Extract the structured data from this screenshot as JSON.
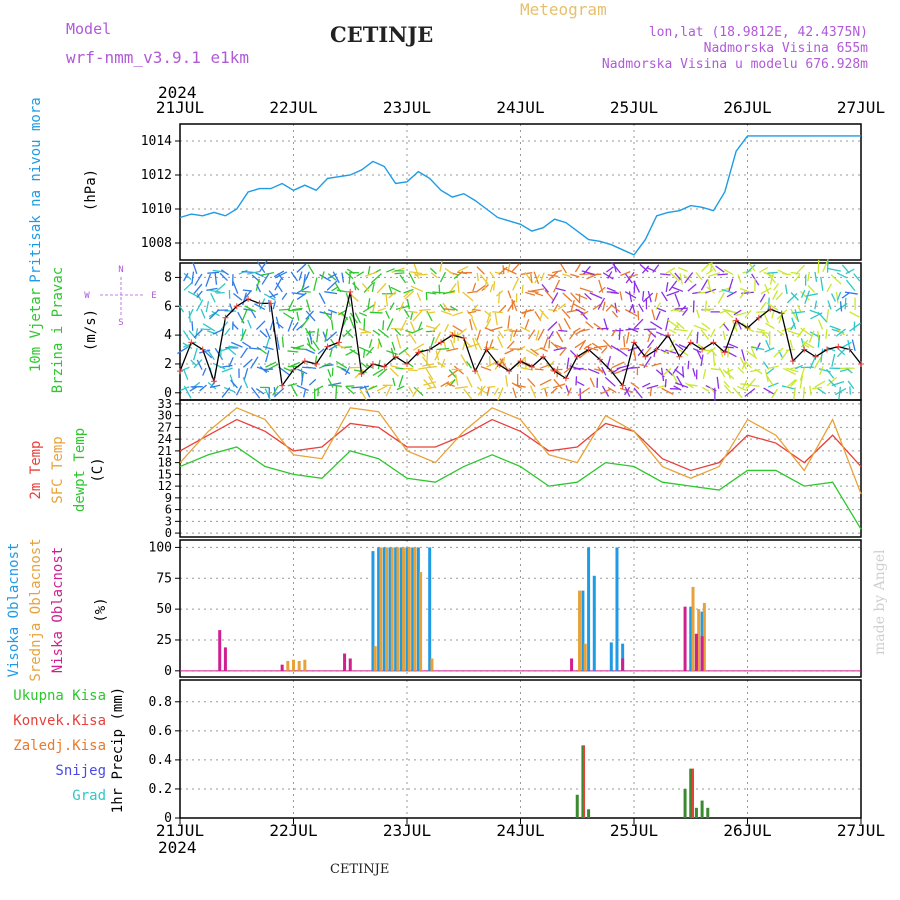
{
  "header": {
    "model_label": "Model",
    "model_name": "wrf-nmm_v3.9.1 e1km",
    "station": "CETINJE",
    "meteogram": "Meteogram",
    "lonlat": "lon,lat (18.9812E, 42.4375N)",
    "elevation": "Nadmorska Visina 655m",
    "model_elevation": "Nadmorska Visina u modelu 676.928m"
  },
  "footer": {
    "station": "CETINJE",
    "credit": "made by Angel"
  },
  "colors": {
    "pressure": "#1f9be6",
    "temp": "#e8403a",
    "sfc": "#e8a23a",
    "dew": "#2ec72e",
    "high": "#1f9be6",
    "mid": "#e8a23a",
    "low": "#d01f8f",
    "precip": "#3a8a2e",
    "konv": "#e8403a"
  },
  "time_axis": {
    "year": "2024",
    "labels": [
      "21JUL",
      "22JUL",
      "23JUL",
      "24JUL",
      "25JUL",
      "26JUL",
      "27JUL"
    ]
  },
  "chart_data": [
    {
      "type": "line",
      "panel": "pressure",
      "ylabel": [
        "Pritisak na nivou mora",
        "(hPa)"
      ],
      "ylim": [
        1007,
        1015
      ],
      "yticks": [
        1008,
        1010,
        1012,
        1014
      ],
      "grid": true,
      "series": [
        {
          "name": "Pritisak na nivou mora",
          "x": [
            0,
            0.1,
            0.2,
            0.3,
            0.4,
            0.5,
            0.6,
            0.7,
            0.8,
            0.9,
            1.0,
            1.1,
            1.2,
            1.3,
            1.4,
            1.5,
            1.6,
            1.7,
            1.8,
            1.9,
            2.0,
            2.1,
            2.2,
            2.3,
            2.4,
            2.5,
            2.6,
            2.7,
            2.8,
            2.9,
            3.0,
            3.1,
            3.2,
            3.3,
            3.4,
            3.5,
            3.6,
            3.7,
            3.8,
            3.9,
            4.0,
            4.1,
            4.2,
            4.3,
            4.4,
            4.5,
            4.6,
            4.7,
            4.8,
            4.9,
            5.0,
            5.1,
            5.2,
            5.3,
            5.4,
            5.5,
            5.6,
            5.7,
            5.8,
            5.9,
            6.0
          ],
          "y": [
            1009.5,
            1009.7,
            1009.6,
            1009.8,
            1009.6,
            1010.0,
            1011.0,
            1011.2,
            1011.2,
            1011.5,
            1011.1,
            1011.4,
            1011.1,
            1011.8,
            1011.9,
            1012.0,
            1012.3,
            1012.8,
            1012.5,
            1011.5,
            1011.6,
            1012.2,
            1011.8,
            1011.1,
            1010.7,
            1010.9,
            1010.5,
            1010.0,
            1009.5,
            1009.3,
            1009.1,
            1008.7,
            1008.9,
            1009.4,
            1009.2,
            1008.7,
            1008.2,
            1008.1,
            1007.9,
            1007.6,
            1007.3,
            1008.2,
            1009.6,
            1009.8,
            1009.9,
            1010.2,
            1010.1,
            1009.9,
            1011.0,
            1013.4,
            1014.3,
            1014.3,
            1014.3,
            1014.3,
            1014.3,
            1014.3,
            1014.3,
            1014.3,
            1014.3,
            1014.3,
            1014.3
          ]
        }
      ]
    },
    {
      "type": "line",
      "panel": "wind",
      "ylabel": [
        "10m Vjetar",
        "Brzina i Pravac",
        "(m/s)"
      ],
      "ylim": [
        -0.5,
        9
      ],
      "yticks": [
        0,
        2,
        4,
        6,
        8
      ],
      "grid": true,
      "compass": [
        "N",
        "W",
        "E",
        "S"
      ],
      "series": [
        {
          "name": "10m Vjetar",
          "x": [
            0,
            0.1,
            0.2,
            0.3,
            0.4,
            0.5,
            0.6,
            0.7,
            0.8,
            0.9,
            1.0,
            1.1,
            1.2,
            1.3,
            1.4,
            1.5,
            1.6,
            1.7,
            1.8,
            1.9,
            2.0,
            2.1,
            2.2,
            2.3,
            2.4,
            2.5,
            2.6,
            2.7,
            2.8,
            2.9,
            3.0,
            3.1,
            3.2,
            3.3,
            3.4,
            3.5,
            3.6,
            3.7,
            3.8,
            3.9,
            4.0,
            4.1,
            4.2,
            4.3,
            4.4,
            4.5,
            4.6,
            4.7,
            4.8,
            4.9,
            5.0,
            5.1,
            5.2,
            5.3,
            5.4,
            5.5,
            5.6,
            5.7,
            5.8,
            5.9,
            6.0
          ],
          "y": [
            1.5,
            3.5,
            3.0,
            0.8,
            5.2,
            6.0,
            6.5,
            6.2,
            6.2,
            0.5,
            1.6,
            2.2,
            2.0,
            3.2,
            3.5,
            7.0,
            1.3,
            2.0,
            1.8,
            2.5,
            2.0,
            2.8,
            3.0,
            3.5,
            4.0,
            3.8,
            1.5,
            3.0,
            2.0,
            1.5,
            2.2,
            1.8,
            2.5,
            1.5,
            1.0,
            2.5,
            3.0,
            2.3,
            1.5,
            0.5,
            3.5,
            2.5,
            3.0,
            4.0,
            2.5,
            3.5,
            3.0,
            3.5,
            2.8,
            5.0,
            4.5,
            5.2,
            5.8,
            5.5,
            2.2,
            3.0,
            2.5,
            3.0,
            3.2,
            3.0,
            2.0
          ]
        }
      ]
    },
    {
      "type": "line",
      "panel": "temperature",
      "ylabel": [
        "2m Temp",
        "SFC Temp",
        "dewpt Temp",
        "(C)"
      ],
      "ylim": [
        -1,
        34
      ],
      "yticks": [
        0,
        3,
        6,
        9,
        12,
        15,
        18,
        21,
        24,
        27,
        30,
        33
      ],
      "grid": true,
      "x": [
        0,
        0.25,
        0.5,
        0.75,
        1.0,
        1.25,
        1.5,
        1.75,
        2.0,
        2.25,
        2.5,
        2.75,
        3.0,
        3.25,
        3.5,
        3.75,
        4.0,
        4.25,
        4.5,
        4.75,
        5.0,
        5.25,
        5.5,
        5.75,
        6.0
      ],
      "series": [
        {
          "name": "2m Temp",
          "values": [
            21,
            25,
            29,
            26,
            21,
            22,
            28,
            27,
            22,
            22,
            25,
            29,
            26,
            21,
            22,
            28,
            26,
            19,
            16,
            18,
            25,
            23,
            18,
            25,
            17
          ]
        },
        {
          "name": "SFC Temp",
          "values": [
            18,
            26,
            32,
            29,
            20,
            19,
            32,
            31,
            21,
            18,
            26,
            32,
            29,
            20,
            18,
            30,
            26,
            17,
            14,
            17,
            29,
            25,
            16,
            29,
            10
          ]
        },
        {
          "name": "dewpt Temp",
          "values": [
            17,
            20,
            22,
            17,
            15,
            14,
            21,
            19,
            14,
            13,
            17,
            20,
            17,
            12,
            13,
            18,
            17,
            13,
            12,
            11,
            16,
            16,
            12,
            13,
            1
          ]
        }
      ]
    },
    {
      "type": "bar",
      "panel": "cloud",
      "ylabel": [
        "Visoka Oblacnost",
        "Srednja Oblacnost",
        "Niska Oblacnost",
        "(%)"
      ],
      "ylim": [
        -5,
        106
      ],
      "yticks": [
        0,
        25,
        50,
        75,
        100
      ],
      "grid": true,
      "series": [
        {
          "name": "Visoka Oblacnost",
          "x": [
            1.7,
            1.75,
            1.8,
            1.85,
            1.9,
            1.95,
            2.0,
            2.05,
            2.1,
            2.2,
            3.55,
            3.6,
            3.65,
            3.8,
            3.85,
            3.9,
            4.5,
            4.55,
            4.6
          ],
          "values": [
            97,
            100,
            100,
            100,
            100,
            100,
            100,
            100,
            100,
            100,
            65,
            100,
            77,
            23,
            100,
            22,
            52,
            30,
            48
          ]
        },
        {
          "name": "Srednja Oblacnost",
          "x": [
            1.72,
            1.77,
            1.82,
            1.87,
            1.92,
            1.97,
            2.02,
            2.07,
            2.12,
            2.22,
            0.95,
            1.0,
            1.05,
            1.1,
            3.52,
            3.57,
            4.52,
            4.57,
            4.62
          ],
          "values": [
            20,
            100,
            100,
            100,
            100,
            100,
            100,
            100,
            80,
            10,
            8,
            9,
            8,
            9,
            65,
            22,
            68,
            50,
            55
          ]
        },
        {
          "name": "Niska Oblacnost",
          "x": [
            0.35,
            0.4,
            1.45,
            1.5,
            0.9,
            3.45,
            3.9,
            4.45,
            4.55,
            4.6
          ],
          "values": [
            33,
            19,
            14,
            10,
            5,
            10,
            10,
            52,
            30,
            28
          ]
        }
      ]
    },
    {
      "type": "bar",
      "panel": "precip",
      "ylabel": [
        "Ukupna Kisa",
        "Konvek.Kisa",
        "Zaledj.Kisa",
        "Snijeg",
        "Grad",
        "1hr Precip (mm)"
      ],
      "ylim": [
        0,
        0.95
      ],
      "yticks": [
        0,
        0.2,
        0.4,
        0.6,
        0.8
      ],
      "grid": true,
      "series": [
        {
          "name": "Ukupna Kisa",
          "x": [
            3.5,
            3.55,
            3.6,
            4.45,
            4.5,
            4.55,
            4.6,
            4.65
          ],
          "values": [
            0.16,
            0.5,
            0.06,
            0.2,
            0.34,
            0.07,
            0.12,
            0.07
          ]
        },
        {
          "name": "Konvek.Kisa",
          "x": [
            3.56,
            4.52
          ],
          "values": [
            0.5,
            0.34
          ]
        }
      ]
    }
  ]
}
